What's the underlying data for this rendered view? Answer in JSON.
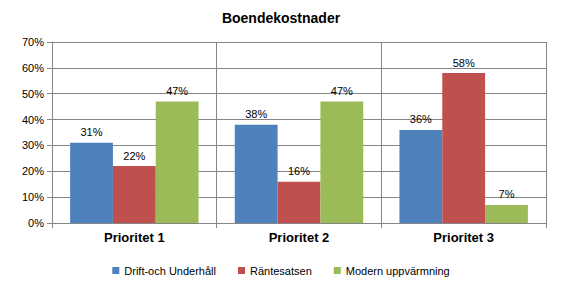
{
  "chart_data": {
    "type": "bar",
    "title": "Boendekostnader",
    "categories": [
      "Prioritet 1",
      "Prioritet 2",
      "Prioritet 3"
    ],
    "series": [
      {
        "name": "Drift-och Underhåll",
        "color": "#4f81bd",
        "values": [
          31,
          38,
          36
        ],
        "value_labels": [
          "31%",
          "38%",
          "36%"
        ]
      },
      {
        "name": "Räntesatsen",
        "color": "#c0504d",
        "values": [
          22,
          16,
          58
        ],
        "value_labels": [
          "22%",
          "16%",
          "58%"
        ]
      },
      {
        "name": "Modern uppvärmning",
        "color": "#9bbb59",
        "values": [
          47,
          47,
          7
        ],
        "value_labels": [
          "47%",
          "47%",
          "7%"
        ]
      }
    ],
    "ylim": [
      0,
      70
    ],
    "yticks": [
      {
        "value": 0,
        "label": "0%"
      },
      {
        "value": 10,
        "label": "10%"
      },
      {
        "value": 20,
        "label": "20%"
      },
      {
        "value": 30,
        "label": "30%"
      },
      {
        "value": 40,
        "label": "40%"
      },
      {
        "value": 50,
        "label": "50%"
      },
      {
        "value": 60,
        "label": "60%"
      },
      {
        "value": 70,
        "label": "70%"
      }
    ],
    "grid": true,
    "legend": "bottom",
    "data_labels": true
  }
}
